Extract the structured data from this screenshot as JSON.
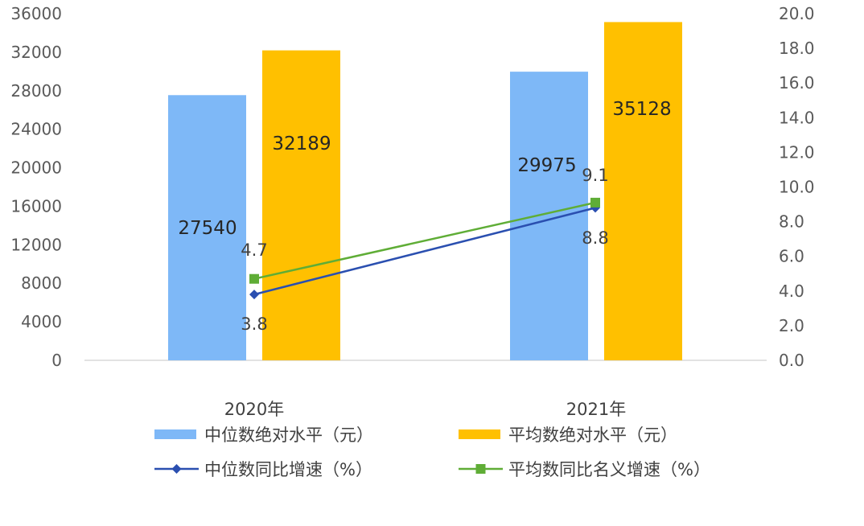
{
  "chart_data": {
    "type": "bar",
    "categories": [
      "2020年",
      "2021年"
    ],
    "series": [
      {
        "name": "中位数绝对水平（元）",
        "kind": "bar",
        "axis": "left",
        "color": "#7EB8F7",
        "values": [
          27540,
          29975
        ]
      },
      {
        "name": "平均数绝对水平（元）",
        "kind": "bar",
        "axis": "left",
        "color": "#FFC000",
        "values": [
          32189,
          35128
        ]
      },
      {
        "name": "中位数同比增速（%）",
        "kind": "line",
        "axis": "right",
        "color": "#2A4FB0",
        "marker": "diamond",
        "values": [
          3.8,
          8.8
        ]
      },
      {
        "name": "平均数同比名义增速（%）",
        "kind": "line",
        "axis": "right",
        "color": "#5FAD36",
        "marker": "square",
        "values": [
          4.7,
          9.1
        ]
      }
    ],
    "y_left": {
      "lim": [
        0,
        36000
      ],
      "ticks": [
        "0",
        "4000",
        "8000",
        "12000",
        "16000",
        "20000",
        "24000",
        "28000",
        "32000",
        "36000"
      ]
    },
    "y_right": {
      "lim": [
        0,
        20
      ],
      "ticks": [
        "0.0",
        "2.0",
        "4.0",
        "6.0",
        "8.0",
        "10.0",
        "12.0",
        "14.0",
        "16.0",
        "18.0",
        "20.0"
      ]
    },
    "data_labels": {
      "bars": [
        [
          "27540",
          "29975"
        ],
        [
          "32189",
          "35128"
        ]
      ],
      "lines": [
        [
          "3.8",
          "8.8"
        ],
        [
          "4.7",
          "9.1"
        ]
      ]
    },
    "legend": {
      "position": "bottom",
      "entries": [
        "中位数绝对水平（元）",
        "平均数绝对水平（元）",
        "中位数同比增速（%）",
        "平均数同比名义增速（%）"
      ]
    },
    "grid": false
  }
}
